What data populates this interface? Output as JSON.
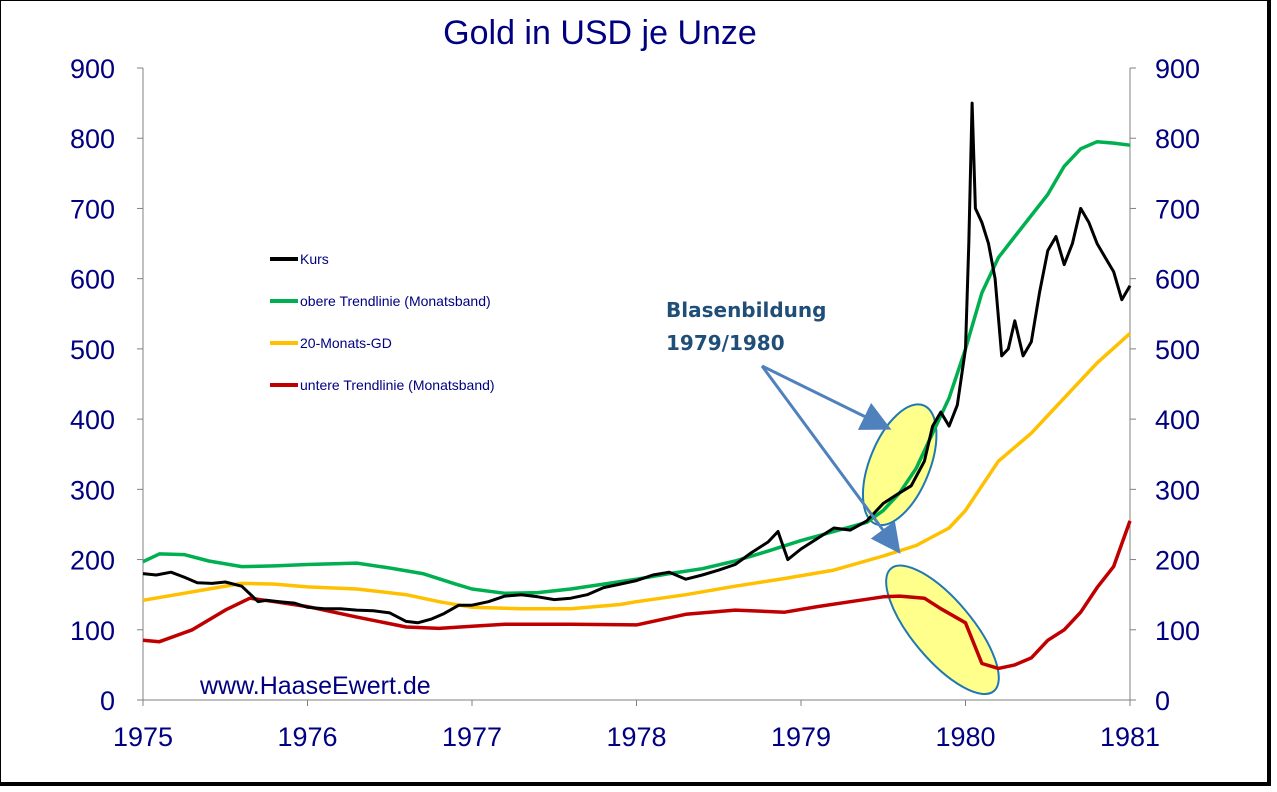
{
  "chart_data": {
    "type": "line",
    "title": "Gold in USD je Unze",
    "xlabel": "",
    "ylabel": "",
    "x_ticks": [
      "1975",
      "1976",
      "1977",
      "1978",
      "1979",
      "1980",
      "1981"
    ],
    "y_ticks": [
      "0",
      "100",
      "200",
      "300",
      "400",
      "500",
      "600",
      "700",
      "800",
      "900"
    ],
    "xlim": [
      1975,
      1981
    ],
    "ylim": [
      0,
      900
    ],
    "grid": false,
    "legend_placement": "left",
    "series": [
      {
        "name": "Kurs",
        "color": "#000000",
        "x": [
          1975.0,
          1975.08,
          1975.17,
          1975.25,
          1975.33,
          1975.42,
          1975.5,
          1975.6,
          1975.7,
          1975.75,
          1975.83,
          1975.92,
          1976.0,
          1976.1,
          1976.2,
          1976.3,
          1976.4,
          1976.5,
          1976.6,
          1976.67,
          1976.75,
          1976.83,
          1976.92,
          1977.0,
          1977.1,
          1977.2,
          1977.3,
          1977.4,
          1977.5,
          1977.6,
          1977.7,
          1977.8,
          1977.9,
          1978.0,
          1978.1,
          1978.2,
          1978.3,
          1978.4,
          1978.5,
          1978.6,
          1978.7,
          1978.8,
          1978.86,
          1978.92,
          1979.0,
          1979.1,
          1979.2,
          1979.3,
          1979.4,
          1979.5,
          1979.6,
          1979.67,
          1979.75,
          1979.8,
          1979.85,
          1979.9,
          1979.95,
          1980.0,
          1980.02,
          1980.04,
          1980.06,
          1980.1,
          1980.14,
          1980.18,
          1980.22,
          1980.26,
          1980.3,
          1980.35,
          1980.4,
          1980.45,
          1980.5,
          1980.55,
          1980.6,
          1980.65,
          1980.7,
          1980.75,
          1980.8,
          1980.85,
          1980.9,
          1980.95,
          1981.0
        ],
        "y": [
          180,
          178,
          182,
          175,
          167,
          166,
          168,
          162,
          140,
          142,
          140,
          138,
          132,
          130,
          130,
          128,
          127,
          124,
          112,
          110,
          115,
          123,
          135,
          135,
          140,
          148,
          150,
          147,
          143,
          145,
          150,
          160,
          165,
          170,
          178,
          182,
          172,
          178,
          185,
          193,
          210,
          225,
          240,
          200,
          215,
          230,
          245,
          242,
          255,
          280,
          295,
          305,
          340,
          390,
          410,
          390,
          420,
          500,
          650,
          850,
          700,
          680,
          650,
          600,
          490,
          500,
          540,
          490,
          510,
          580,
          640,
          660,
          620,
          650,
          700,
          680,
          650,
          630,
          610,
          570,
          590
        ]
      },
      {
        "name": "obere Trendlinie (Monatsband)",
        "color": "#00b050",
        "x": [
          1975.0,
          1975.1,
          1975.25,
          1975.4,
          1975.6,
          1975.8,
          1976.0,
          1976.3,
          1976.5,
          1976.7,
          1976.9,
          1977.0,
          1977.2,
          1977.4,
          1977.6,
          1977.8,
          1978.0,
          1978.2,
          1978.4,
          1978.6,
          1978.8,
          1979.0,
          1979.2,
          1979.4,
          1979.5,
          1979.6,
          1979.7,
          1979.8,
          1979.9,
          1980.0,
          1980.1,
          1980.2,
          1980.3,
          1980.4,
          1980.5,
          1980.6,
          1980.7,
          1980.8,
          1980.9,
          1981.0
        ],
        "y": [
          197,
          208,
          207,
          198,
          190,
          191,
          193,
          195,
          188,
          180,
          165,
          158,
          152,
          153,
          158,
          165,
          172,
          180,
          187,
          198,
          212,
          227,
          240,
          253,
          270,
          295,
          330,
          380,
          430,
          500,
          580,
          630,
          660,
          690,
          720,
          760,
          785,
          795,
          793,
          790
        ]
      },
      {
        "name": "20-Monats-GD",
        "color": "#ffc000",
        "x": [
          1975.0,
          1975.2,
          1975.4,
          1975.6,
          1975.8,
          1976.0,
          1976.3,
          1976.6,
          1976.8,
          1977.0,
          1977.3,
          1977.6,
          1977.9,
          1978.0,
          1978.3,
          1978.6,
          1978.9,
          1979.2,
          1979.5,
          1979.7,
          1979.9,
          1980.0,
          1980.1,
          1980.2,
          1980.4,
          1980.6,
          1980.8,
          1981.0
        ],
        "y": [
          142,
          150,
          158,
          166,
          165,
          161,
          158,
          150,
          140,
          132,
          130,
          130,
          136,
          140,
          150,
          162,
          173,
          185,
          205,
          220,
          245,
          270,
          305,
          340,
          380,
          430,
          480,
          522
        ]
      },
      {
        "name": "untere Trendlinie (Monatsband)",
        "color": "#c00000",
        "x": [
          1975.0,
          1975.1,
          1975.3,
          1975.5,
          1975.65,
          1975.8,
          1976.0,
          1976.3,
          1976.6,
          1976.8,
          1977.0,
          1977.2,
          1977.4,
          1977.6,
          1978.0,
          1978.3,
          1978.6,
          1978.9,
          1979.1,
          1979.3,
          1979.5,
          1979.6,
          1979.75,
          1979.85,
          1980.0,
          1980.1,
          1980.2,
          1980.3,
          1980.4,
          1980.5,
          1980.6,
          1980.7,
          1980.8,
          1980.9,
          1981.0
        ],
        "y": [
          85,
          83,
          100,
          128,
          145,
          140,
          133,
          118,
          104,
          102,
          105,
          108,
          108,
          108,
          107,
          122,
          128,
          125,
          133,
          140,
          147,
          148,
          145,
          130,
          110,
          52,
          45,
          50,
          60,
          85,
          100,
          125,
          160,
          190,
          255
        ]
      }
    ]
  },
  "legend": [
    {
      "label": "Kurs",
      "color": "#000000"
    },
    {
      "label": "obere Trendlinie (Monatsband)",
      "color": "#00b050"
    },
    {
      "label": "20-Monats-GD",
      "color": "#ffc000"
    },
    {
      "label": "untere Trendlinie (Monatsband)",
      "color": "#c00000"
    }
  ],
  "annotation": {
    "line1": "Blasenbildung",
    "line2": "1979/1980",
    "highlight_color": "#ffff66",
    "outline_color": "#1f78b4",
    "arrow_color": "#4f81bd"
  },
  "watermark": "www.HaaseEwert.de",
  "colors": {
    "axis_text": "#000080",
    "axis_line": "#808080"
  }
}
